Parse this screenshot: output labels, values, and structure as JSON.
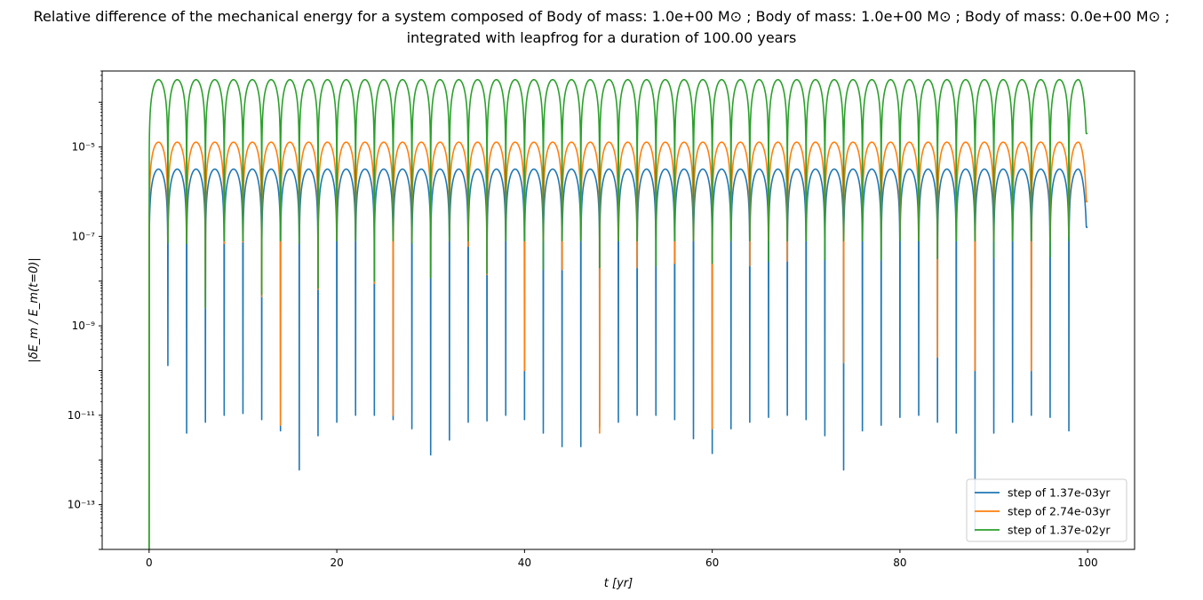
{
  "chart_data": {
    "type": "line",
    "title": {
      "line1": "Relative difference of the mechanical energy for a system composed of Body of mass: 1.0e+00 M⊙ ; Body of mass: 1.0e+00 M⊙ ; Body of mass: 0.0e+00 M⊙ ;",
      "line2": "integrated with leapfrog for a duration of 100.00 years"
    },
    "xlabel": "t [yr]",
    "ylabel": "|δE_m / E_m(t=0)|",
    "x_scale": "linear",
    "y_scale": "log",
    "xlim": [
      -5,
      105
    ],
    "ylim": [
      1e-14,
      0.0005
    ],
    "x_ticks": [
      {
        "value": 0,
        "label": "0"
      },
      {
        "value": 20,
        "label": "20"
      },
      {
        "value": 40,
        "label": "40"
      },
      {
        "value": 60,
        "label": "60"
      },
      {
        "value": 80,
        "label": "80"
      },
      {
        "value": 100,
        "label": "100"
      }
    ],
    "y_ticks": [
      {
        "exp": -13,
        "label": "10⁻¹³"
      },
      {
        "exp": -11,
        "label": "10⁻¹¹"
      },
      {
        "exp": -9,
        "label": "10⁻⁹"
      },
      {
        "exp": -7,
        "label": "10⁻⁷"
      },
      {
        "exp": -5,
        "label": "10⁻⁵"
      }
    ],
    "grid": false,
    "legend_position": "lower-right",
    "period_yr": 2.0,
    "duration_yr": 100,
    "series": [
      {
        "name": "step of 1.37e-03yr",
        "color": "#1f77b4",
        "peak_value": 3.2e-06,
        "end_value": 1.6e-07,
        "dip_values": [
          1.3e-10,
          4e-12,
          7e-12,
          1e-11,
          1.1e-11,
          8e-12,
          4.5e-12,
          6e-13,
          3.5e-12,
          7e-12,
          1e-11,
          1e-11,
          8e-12,
          5e-12,
          1.3e-12,
          2.8e-12,
          7e-12,
          7.5e-12,
          1e-11,
          8e-12,
          4e-12,
          2e-12,
          2e-12,
          5.5e-12,
          7e-12,
          1e-11,
          1e-11,
          8e-12,
          3e-12,
          1.4e-12,
          5e-12,
          7e-12,
          9e-12,
          1e-11,
          8e-12,
          3.5e-12,
          6e-13,
          4.5e-12,
          6e-12,
          9e-12,
          1e-11,
          7e-12,
          4e-12,
          2.5e-14,
          4e-12,
          7e-12,
          1e-11,
          9e-12,
          4.5e-12
        ]
      },
      {
        "name": "step of 2.74e-03yr",
        "color": "#ff7f0e",
        "peak_value": 1.28e-05,
        "end_value": 6e-07,
        "dip_values": [
          8e-08,
          7e-08,
          2.5e-09,
          7e-08,
          7.5e-08,
          4.5e-09,
          6e-12,
          8e-08,
          6.5e-09,
          8e-08,
          8e-08,
          9e-09,
          1e-11,
          7.5e-08,
          1.2e-08,
          8e-08,
          6e-08,
          1.4e-08,
          8e-08,
          1e-10,
          8e-08,
          1.8e-08,
          8e-08,
          4e-12,
          8e-08,
          2e-08,
          8e-08,
          2.5e-08,
          8e-08,
          5e-12,
          8e-08,
          2.2e-08,
          8e-08,
          2.8e-08,
          8e-08,
          8e-08,
          1.5e-10,
          8e-08,
          3e-08,
          9e-08,
          8e-08,
          2e-10,
          8e-08,
          1e-10,
          8e-08,
          8e-08,
          1e-10,
          8e-08,
          1e-07
        ]
      },
      {
        "name": "step of 1.37e-02yr",
        "color": "#2ca02c",
        "peak_value": 0.00032,
        "end_value": 2e-05,
        "dip_values": [
          7e-08,
          7e-08,
          2.5e-09,
          8e-08,
          8e-08,
          5e-09,
          8e-08,
          7e-08,
          7e-09,
          8e-08,
          8e-08,
          1e-08,
          8e-08,
          7e-08,
          1.2e-08,
          8e-08,
          8e-08,
          1.5e-08,
          8e-08,
          8e-08,
          1.8e-08,
          8e-08,
          8e-08,
          2e-08,
          8e-08,
          8e-08,
          2.2e-08,
          8e-08,
          8e-08,
          2.5e-08,
          8e-08,
          8e-08,
          2.8e-08,
          8e-08,
          8e-08,
          3e-08,
          8e-08,
          8e-08,
          3e-08,
          8e-08,
          8e-08,
          3.2e-08,
          8e-08,
          8e-08,
          3.3e-08,
          8e-08,
          8e-08,
          3.5e-08,
          8e-08
        ]
      }
    ]
  }
}
